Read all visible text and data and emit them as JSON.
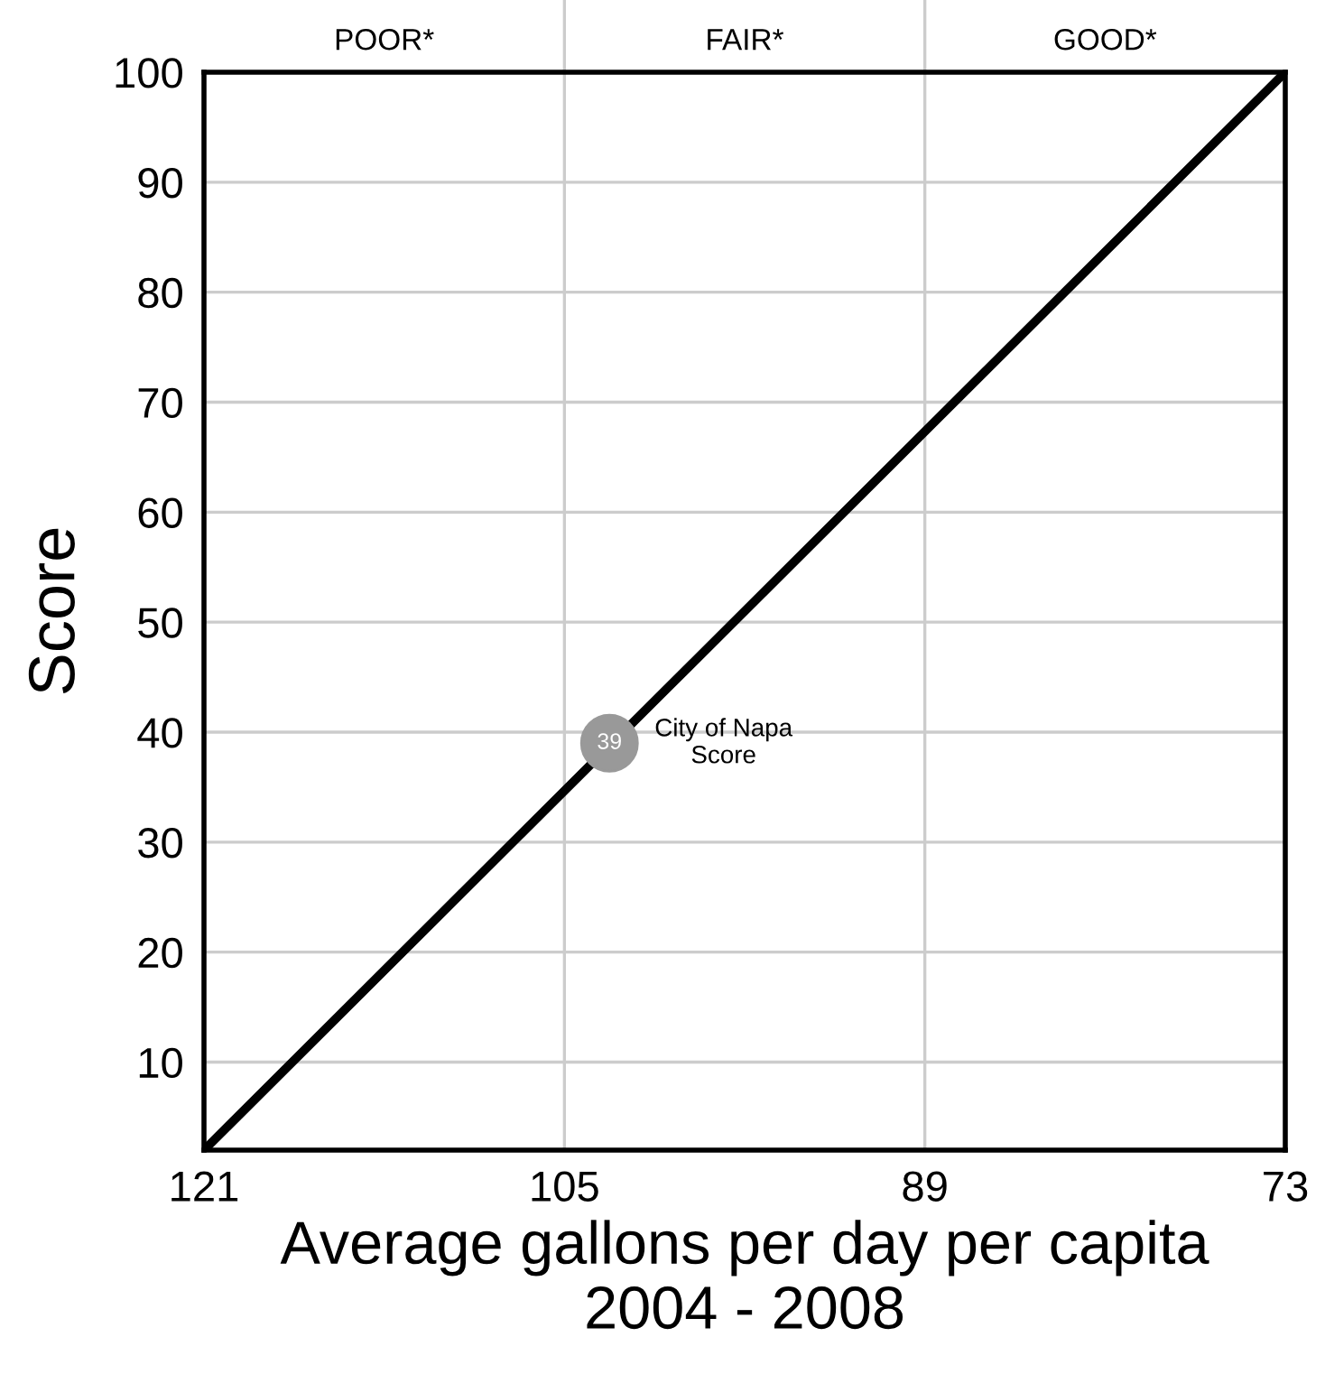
{
  "chart_data": {
    "type": "line",
    "xlabel": "Average gallons per day per capita\n2004 - 2008",
    "ylabel": "Score",
    "series": [
      {
        "color": "#000000",
        "x": [
          121,
          73
        ],
        "values": [
          2,
          100
        ]
      },
      {
        "type": "scatter",
        "color": "#999999",
        "marker": "circle",
        "x": [
          103
        ],
        "values": [
          39
        ],
        "value_labels": [
          "39"
        ]
      }
    ],
    "annotations": [
      {
        "text": "City of Napa\nScore",
        "x": 103,
        "y": 39
      },
      "POOR*",
      "FAIR*",
      "GOOD*"
    ],
    "xlim": [
      121,
      73
    ],
    "ylim": [
      2,
      100
    ],
    "xticks": [
      121,
      105,
      89,
      73
    ],
    "yticks": [
      10,
      20,
      30,
      40,
      50,
      60,
      70,
      80,
      90,
      100
    ],
    "grid": true
  }
}
